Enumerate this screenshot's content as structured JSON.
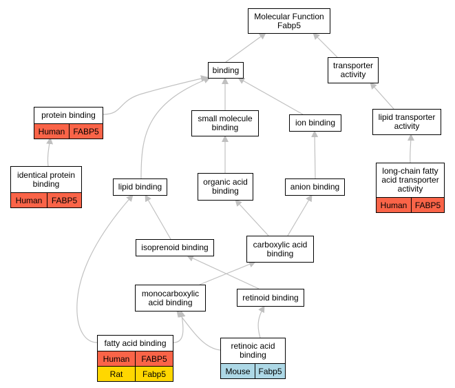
{
  "colors": {
    "edge": "#c0c0c0",
    "Human": "#fa6448",
    "Rat": "#ffd700",
    "Mouse": "#add8e6"
  },
  "nodes": {
    "mf": {
      "label": "Molecular Function\nFabp5"
    },
    "binding": {
      "label": "binding"
    },
    "transporter": {
      "label": "transporter\nactivity"
    },
    "protein": {
      "label": "protein binding",
      "rows": [
        [
          "Human",
          "FABP5"
        ]
      ]
    },
    "smallmol": {
      "label": "small molecule\nbinding"
    },
    "ion": {
      "label": "ion binding"
    },
    "lipidtrans": {
      "label": "lipid transporter\nactivity"
    },
    "identical": {
      "label": "identical protein\nbinding",
      "rows": [
        [
          "Human",
          "FABP5"
        ]
      ]
    },
    "lipid": {
      "label": "lipid binding"
    },
    "organic": {
      "label": "organic acid\nbinding"
    },
    "anion": {
      "label": "anion binding"
    },
    "longchain": {
      "label": "long-chain fatty\nacid transporter\nactivity",
      "rows": [
        [
          "Human",
          "FABP5"
        ]
      ]
    },
    "isoprenoid": {
      "label": "isoprenoid binding"
    },
    "carboxylic": {
      "label": "carboxylic acid\nbinding"
    },
    "monocarb": {
      "label": "monocarboxylic\nacid binding"
    },
    "retinoid": {
      "label": "retinoid binding"
    },
    "fatty": {
      "label": "fatty acid binding",
      "rows": [
        [
          "Human",
          "FABP5"
        ],
        [
          "Rat",
          "Fabp5"
        ]
      ]
    },
    "retinoic": {
      "label": "retinoic acid\nbinding",
      "rows": [
        [
          "Mouse",
          "Fabp5"
        ]
      ]
    }
  },
  "edges": [
    [
      "binding",
      "mf"
    ],
    [
      "transporter",
      "mf"
    ],
    [
      "protein",
      "binding"
    ],
    [
      "smallmol",
      "binding"
    ],
    [
      "ion",
      "binding"
    ],
    [
      "lipid",
      "binding"
    ],
    [
      "lipidtrans",
      "transporter"
    ],
    [
      "identical",
      "protein"
    ],
    [
      "organic",
      "smallmol"
    ],
    [
      "anion",
      "ion"
    ],
    [
      "longchain",
      "lipidtrans"
    ],
    [
      "isoprenoid",
      "lipid"
    ],
    [
      "carboxylic",
      "organic"
    ],
    [
      "carboxylic",
      "anion"
    ],
    [
      "monocarb",
      "carboxylic"
    ],
    [
      "retinoid",
      "isoprenoid"
    ],
    [
      "fatty",
      "lipid"
    ],
    [
      "fatty",
      "monocarb"
    ],
    [
      "retinoic",
      "monocarb"
    ],
    [
      "retinoic",
      "retinoid"
    ]
  ]
}
